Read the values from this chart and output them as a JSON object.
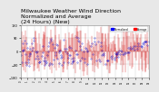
{
  "title": "Milwaukee Weather Wind Direction\nNormalized and Average\n(24 Hours) (New)",
  "title_fontsize": 4.5,
  "background_color": "#e8e8e8",
  "plot_bg_color": "#ffffff",
  "legend_label1": "Normalized",
  "legend_label2": "Average",
  "legend_color1": "#0000ff",
  "legend_color2": "#ff0000",
  "ylim": [
    -180,
    180
  ],
  "num_points": 300,
  "seed": 42
}
